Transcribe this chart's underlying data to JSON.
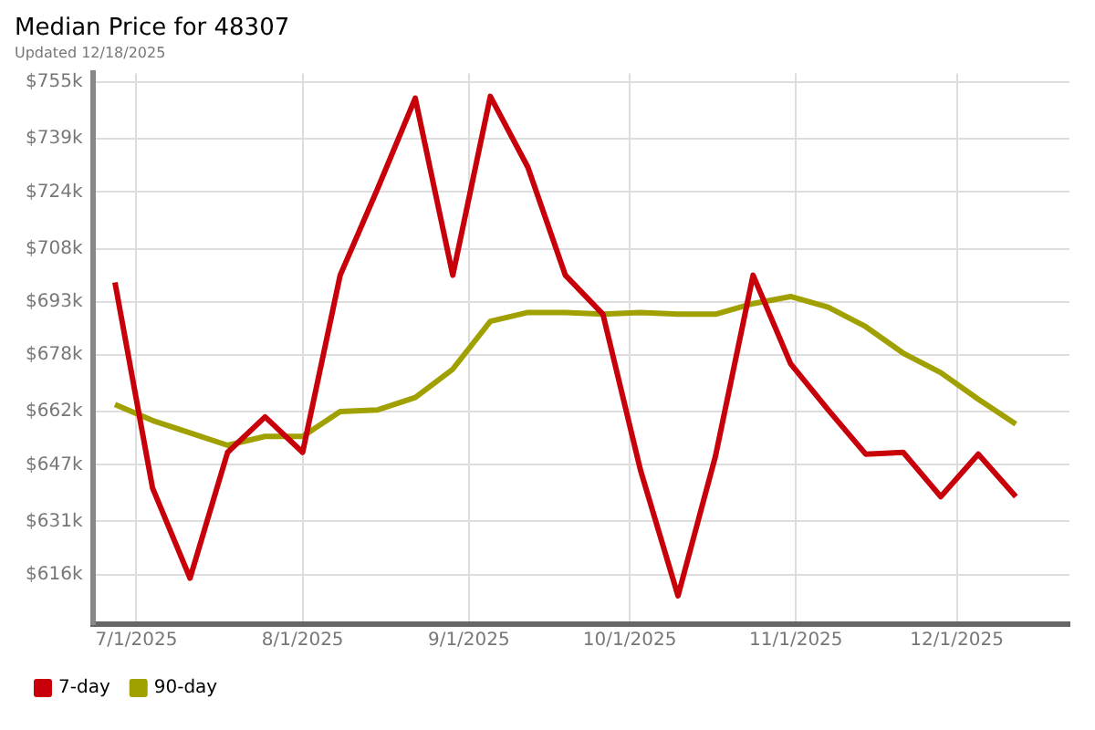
{
  "chart_data": {
    "type": "line",
    "title": "Median Price for 48307",
    "subtitle": "Updated 12/18/2025",
    "x": [
      "2025-06-27",
      "2025-07-04",
      "2025-07-11",
      "2025-07-18",
      "2025-07-25",
      "2025-08-01",
      "2025-08-08",
      "2025-08-15",
      "2025-08-22",
      "2025-08-29",
      "2025-09-05",
      "2025-09-12",
      "2025-09-19",
      "2025-09-26",
      "2025-10-03",
      "2025-10-10",
      "2025-10-17",
      "2025-10-24",
      "2025-10-31",
      "2025-11-07",
      "2025-11-14",
      "2025-11-21",
      "2025-11-28",
      "2025-12-05",
      "2025-12-12"
    ],
    "series": [
      {
        "name": "7-day",
        "color": "#c8000a",
        "values": [
          698500,
          640500,
          615000,
          650500,
          660500,
          650500,
          700500,
          725000,
          750500,
          700500,
          751000,
          731000,
          700500,
          689500,
          645500,
          610000,
          649500,
          700500,
          675500,
          662500,
          650000,
          650500,
          638000,
          650000,
          638000
        ]
      },
      {
        "name": "90-day",
        "color": "#a0a000",
        "values": [
          664000,
          659500,
          656000,
          652500,
          655000,
          655000,
          662000,
          662500,
          666000,
          674000,
          687500,
          690000,
          690000,
          689500,
          690000,
          689500,
          689500,
          692500,
          694500,
          691500,
          686000,
          678500,
          673000,
          665500,
          658500
        ]
      }
    ],
    "xlim": [
      "2025-06-23",
      "2025-12-22"
    ],
    "xticks": [
      {
        "value": "2025-07-01",
        "label": "7/1/2025"
      },
      {
        "value": "2025-08-01",
        "label": "8/1/2025"
      },
      {
        "value": "2025-09-01",
        "label": "9/1/2025"
      },
      {
        "value": "2025-10-01",
        "label": "10/1/2025"
      },
      {
        "value": "2025-11-01",
        "label": "11/1/2025"
      },
      {
        "value": "2025-12-01",
        "label": "12/1/2025"
      }
    ],
    "ylim": [
      602000,
      757500
    ],
    "yticks": [
      {
        "value": 616000,
        "label": "$616k"
      },
      {
        "value": 631000,
        "label": "$631k"
      },
      {
        "value": 647000,
        "label": "$647k"
      },
      {
        "value": 662000,
        "label": "$662k"
      },
      {
        "value": 678000,
        "label": "$678k"
      },
      {
        "value": 693000,
        "label": "$693k"
      },
      {
        "value": 708000,
        "label": "$708k"
      },
      {
        "value": 724000,
        "label": "$724k"
      },
      {
        "value": 739000,
        "label": "$739k"
      },
      {
        "value": 755000,
        "label": "$755k"
      }
    ],
    "grid": true,
    "legend": "bottom left",
    "marker": "none",
    "line_style": "solid"
  }
}
